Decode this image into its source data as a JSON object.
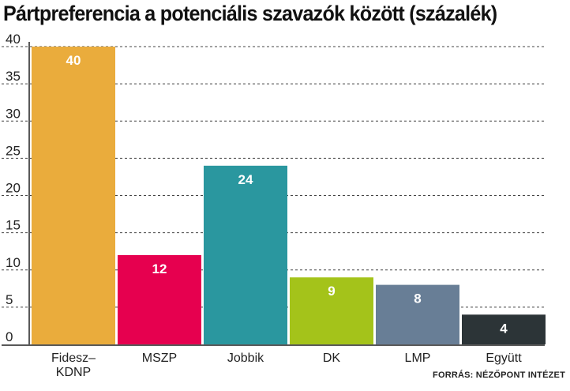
{
  "title": "Pártpreferencia a potenciális szavazók között (százalék)",
  "source": "FORRÁS: NÉZŐPONT INTÉZET",
  "chart_data": {
    "type": "bar",
    "title": "Pártpreferencia a potenciális szavazók között (százalék)",
    "xlabel": "",
    "ylabel": "",
    "ylim": [
      0,
      40
    ],
    "yticks": [
      0,
      5,
      10,
      15,
      20,
      25,
      30,
      35,
      40
    ],
    "grid": true,
    "categories": [
      [
        "Fidesz–",
        "KDNP"
      ],
      [
        "MSZP"
      ],
      [
        "Jobbik"
      ],
      [
        "DK"
      ],
      [
        "LMP"
      ],
      [
        "Együtt"
      ]
    ],
    "values": [
      40,
      12,
      24,
      9,
      8,
      4
    ],
    "colors": [
      "#eaac3c",
      "#e6004f",
      "#2a979f",
      "#a4c31a",
      "#687e96",
      "#2c3437"
    ]
  }
}
